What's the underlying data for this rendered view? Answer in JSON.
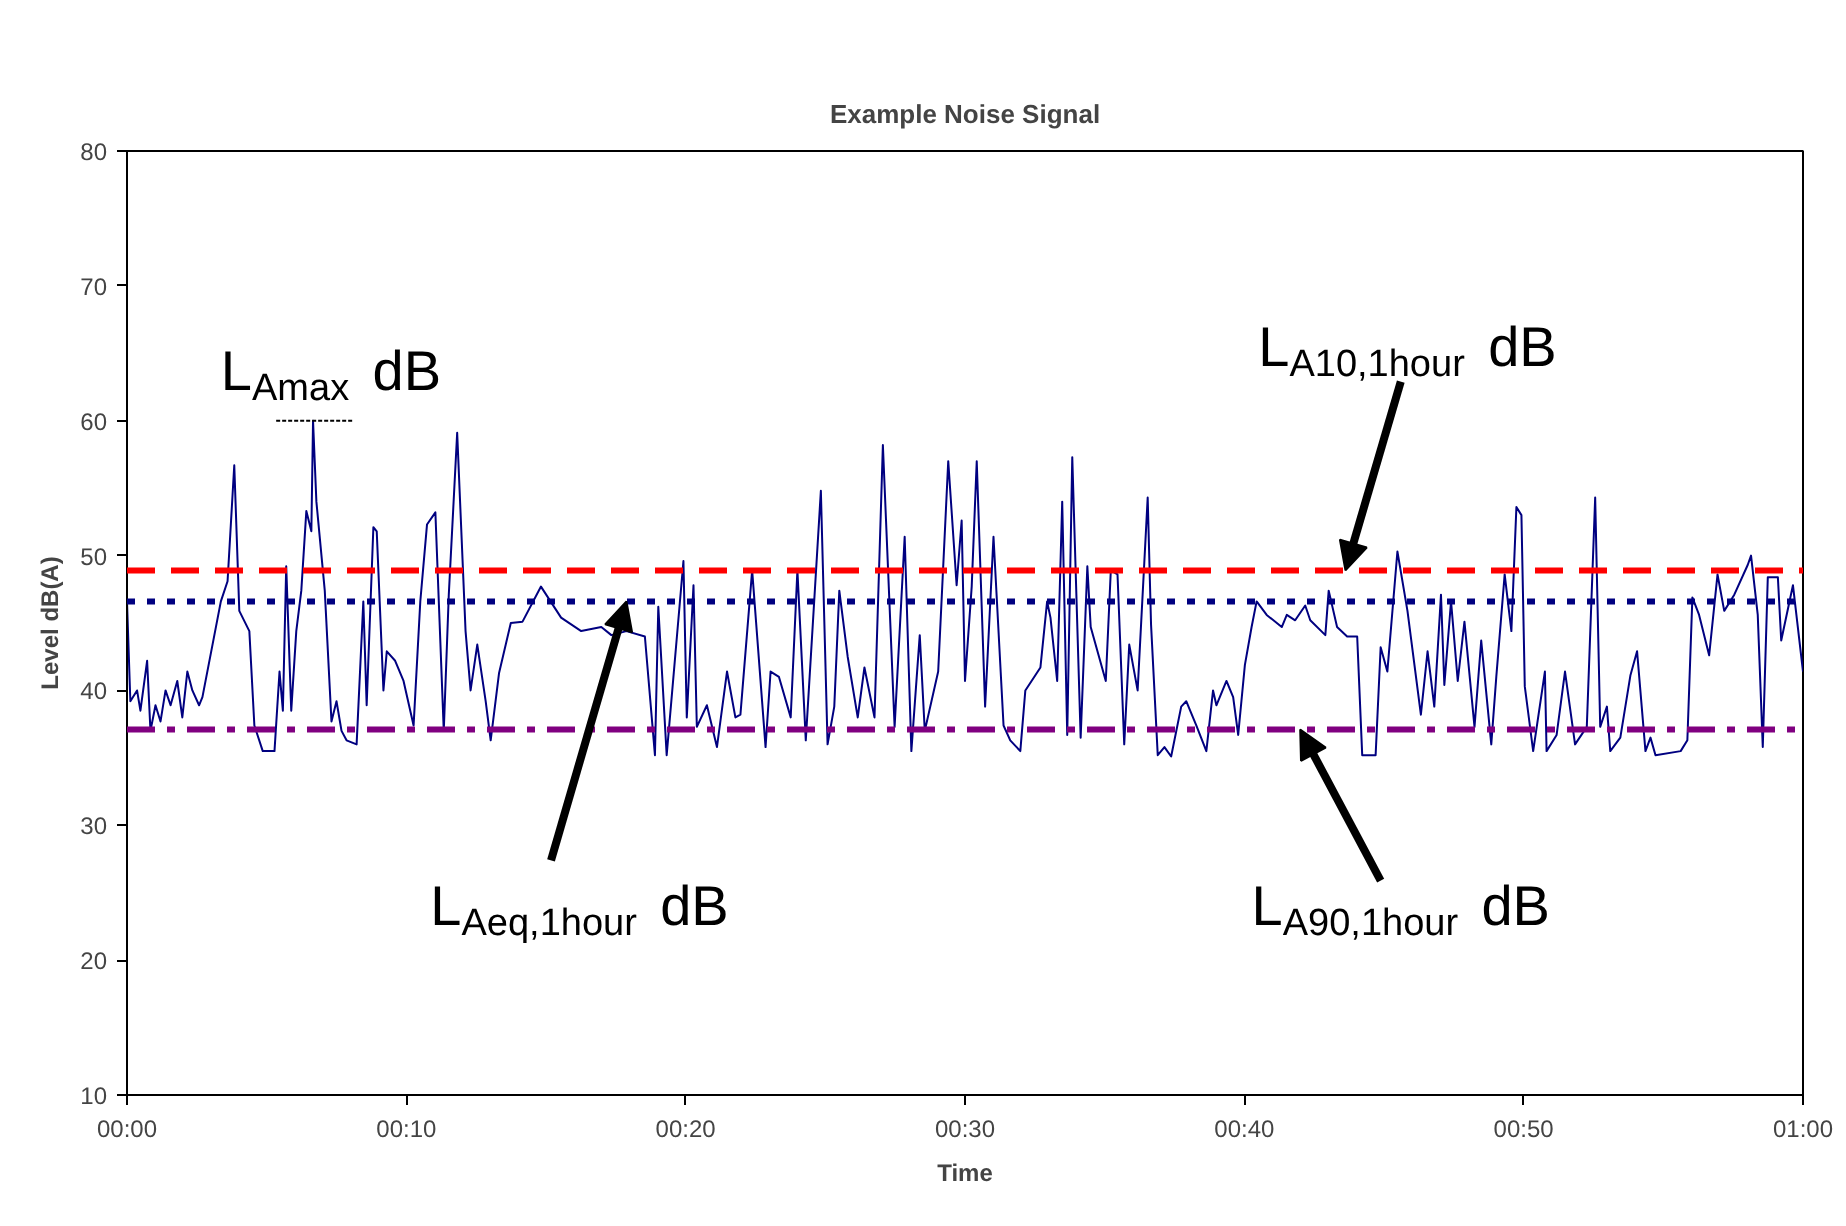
{
  "chart_data": {
    "type": "line",
    "title": "Example Noise Signal",
    "xlabel": "Time",
    "ylabel": "Level dB(A)",
    "xlim": [
      0,
      1
    ],
    "ylim": [
      10,
      80
    ],
    "xticks": [
      {
        "value": 0,
        "label": "00:00"
      },
      {
        "value": 0.1667,
        "label": "00:10"
      },
      {
        "value": 0.3333,
        "label": "00:20"
      },
      {
        "value": 0.5,
        "label": "00:30"
      },
      {
        "value": 0.6667,
        "label": "00:40"
      },
      {
        "value": 0.8333,
        "label": "00:50"
      },
      {
        "value": 1,
        "label": "01:00"
      }
    ],
    "yticks": [
      10,
      20,
      30,
      40,
      50,
      60,
      70,
      80
    ],
    "grid": false,
    "marker": "none",
    "line_style": "solid",
    "series": [
      {
        "color": "#000080",
        "x": [
          0,
          0.002,
          0.006,
          0.008,
          0.012,
          0.014,
          0.017,
          0.02,
          0.023,
          0.026,
          0.03,
          0.033,
          0.036,
          0.039,
          0.043,
          0.045,
          0.056,
          0.06,
          0.064,
          0.067,
          0.073,
          0.076,
          0.081,
          0.085,
          0.088,
          0.091,
          0.093,
          0.095,
          0.098,
          0.101,
          0.104,
          0.107,
          0.11,
          0.111,
          0.113,
          0.118,
          0.122,
          0.125,
          0.128,
          0.131,
          0.137,
          0.141,
          0.143,
          0.147,
          0.149,
          0.153,
          0.155,
          0.16,
          0.165,
          0.171,
          0.175,
          0.179,
          0.184,
          0.189,
          0.192,
          0.197,
          0.202,
          0.205,
          0.209,
          0.214,
          0.217,
          0.222,
          0.229,
          0.236,
          0.247,
          0.259,
          0.271,
          0.283,
          0.289,
          0.298,
          0.309,
          0.315,
          0.317,
          0.322,
          0.332,
          0.334,
          0.338,
          0.34,
          0.346,
          0.352,
          0.358,
          0.363,
          0.366,
          0.373,
          0.381,
          0.384,
          0.389,
          0.396,
          0.4,
          0.405,
          0.414,
          0.418,
          0.422,
          0.425,
          0.43,
          0.436,
          0.44,
          0.446,
          0.451,
          0.458,
          0.464,
          0.468,
          0.473,
          0.476,
          0.484,
          0.49,
          0.495,
          0.498,
          0.5,
          0.504,
          0.507,
          0.512,
          0.517,
          0.523,
          0.527,
          0.533,
          0.536,
          0.545,
          0.549,
          0.551,
          0.555,
          0.558,
          0.561,
          0.564,
          0.569,
          0.573,
          0.575,
          0.584,
          0.587,
          0.591,
          0.595,
          0.598,
          0.603,
          0.609,
          0.611,
          0.615,
          0.619,
          0.623,
          0.629,
          0.632,
          0.638,
          0.644,
          0.648,
          0.65,
          0.656,
          0.66,
          0.663,
          0.667,
          0.671,
          0.674,
          0.68,
          0.689,
          0.692,
          0.697,
          0.703,
          0.706,
          0.715,
          0.717,
          0.722,
          0.728,
          0.734,
          0.737,
          0.745,
          0.748,
          0.752,
          0.758,
          0.764,
          0.772,
          0.776,
          0.78,
          0.784,
          0.786,
          0.79,
          0.794,
          0.798,
          0.804,
          0.808,
          0.814,
          0.817,
          0.822,
          0.826,
          0.829,
          0.832,
          0.834,
          0.839,
          0.846,
          0.847,
          0.853,
          0.858,
          0.864,
          0.871,
          0.876,
          0.879,
          0.883,
          0.885,
          0.891,
          0.897,
          0.901,
          0.906,
          0.909,
          0.912,
          0.927,
          0.931,
          0.934,
          0.938,
          0.944,
          0.949,
          0.953,
          0.959,
          0.967,
          0.969,
          0.973,
          0.976,
          0.979,
          0.985,
          0.987,
          0.994,
          1.0
        ],
        "values": [
          46.6,
          39.2,
          40.0,
          38.5,
          42.2,
          37.0,
          38.9,
          37.7,
          40.0,
          38.9,
          40.7,
          38.0,
          41.4,
          40.0,
          38.9,
          39.5,
          46.6,
          48.1,
          56.7,
          45.9,
          44.4,
          37.4,
          35.5,
          35.5,
          35.5,
          41.4,
          38.5,
          49.2,
          38.5,
          44.4,
          47.4,
          53.3,
          51.8,
          60.0,
          54.0,
          47.4,
          37.7,
          39.2,
          37.0,
          36.3,
          36.0,
          46.6,
          38.9,
          52.1,
          51.8,
          40.0,
          42.9,
          42.2,
          40.7,
          37.4,
          46.6,
          52.3,
          53.2,
          37.0,
          47.1,
          59.1,
          44.4,
          40.0,
          43.4,
          39.2,
          36.3,
          41.3,
          45.0,
          45.1,
          47.7,
          45.4,
          44.4,
          44.7,
          44.1,
          44.4,
          44.0,
          35.2,
          46.2,
          35.2,
          49.6,
          38.0,
          47.8,
          37.3,
          38.9,
          35.8,
          41.4,
          38.0,
          38.2,
          48.9,
          35.8,
          41.4,
          41.0,
          38.0,
          48.9,
          36.3,
          54.8,
          36.0,
          38.8,
          47.4,
          42.5,
          38.0,
          41.7,
          38.0,
          58.2,
          37.3,
          51.4,
          35.5,
          44.1,
          37.0,
          41.4,
          57.0,
          47.8,
          52.6,
          40.7,
          47.7,
          57.0,
          38.8,
          51.4,
          37.4,
          36.3,
          35.5,
          40.0,
          41.7,
          46.6,
          45.4,
          40.7,
          54.0,
          36.7,
          57.3,
          36.5,
          49.2,
          44.7,
          40.7,
          48.9,
          48.6,
          36.0,
          43.4,
          40.0,
          54.3,
          44.9,
          35.2,
          35.8,
          35.1,
          38.8,
          39.2,
          37.4,
          35.5,
          40.0,
          38.9,
          40.7,
          39.5,
          36.7,
          41.9,
          44.7,
          46.6,
          45.6,
          44.7,
          45.6,
          45.2,
          46.3,
          45.2,
          44.1,
          47.4,
          44.7,
          44.0,
          44.0,
          35.2,
          35.2,
          43.2,
          41.4,
          50.3,
          45.9,
          38.2,
          42.9,
          38.8,
          47.1,
          40.4,
          46.6,
          40.7,
          45.1,
          37.3,
          43.7,
          36.0,
          41.0,
          48.6,
          44.4,
          53.6,
          53.0,
          40.3,
          35.5,
          41.4,
          35.5,
          36.7,
          41.4,
          36.0,
          37.3,
          54.3,
          37.3,
          38.8,
          35.5,
          36.5,
          41.1,
          42.9,
          35.5,
          36.5,
          35.2,
          35.5,
          36.3,
          46.9,
          45.6,
          42.6,
          48.6,
          45.9,
          47.1,
          49.3,
          50.0,
          45.6,
          35.8,
          48.4,
          48.4,
          43.7,
          47.8,
          41.4
        ]
      }
    ],
    "ref_lines": [
      {
        "axis": "y",
        "value": 48.9,
        "label": "L$_{A10,1hour}$ dB",
        "color": "#ff0000",
        "line_style": "dashed"
      },
      {
        "axis": "y",
        "value": 46.6,
        "label": "L$_{Aeq,1hour}$ dB",
        "color": "#000080",
        "line_style": "dotted"
      },
      {
        "axis": "y",
        "value": 37.1,
        "label": "L$_{A90,1hour}$ dB",
        "color": "#800080",
        "line_style": "dashdot"
      }
    ],
    "annotations": [
      {
        "text": "L$_{Amax}$ dB",
        "x": 0.111,
        "y": 60.0
      }
    ]
  }
}
